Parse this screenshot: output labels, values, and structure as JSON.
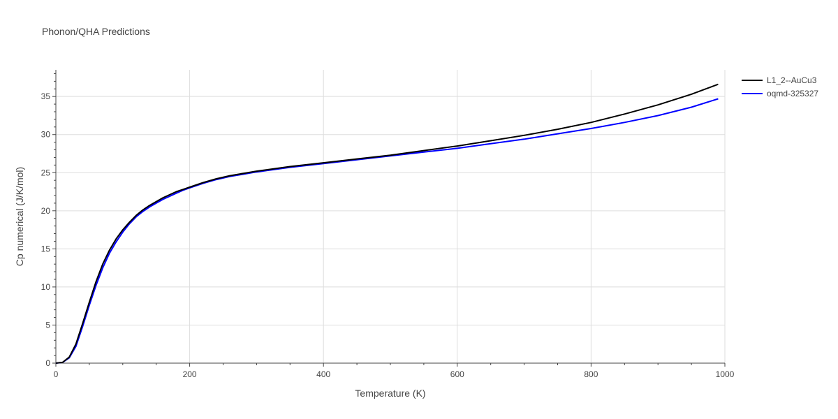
{
  "colors": {
    "grid": "#dddddd",
    "axis": "#444444",
    "text": "#444444",
    "background": "#ffffff"
  },
  "chart_data": {
    "type": "line",
    "title": "Phonon/QHA Predictions",
    "xlabel": "Temperature (K)",
    "ylabel": "Cp numerical (J/K/mol)",
    "xlim": [
      0,
      1000
    ],
    "ylim": [
      0,
      38.5
    ],
    "xticks": [
      0,
      200,
      400,
      600,
      800,
      1000
    ],
    "yticks": [
      0,
      5,
      10,
      15,
      20,
      25,
      30,
      35
    ],
    "grid": true,
    "legend_position": "top-right",
    "series": [
      {
        "name": "L1_2--AuCu3",
        "color": "#000000",
        "x": [
          0,
          10,
          20,
          30,
          40,
          50,
          60,
          70,
          80,
          90,
          100,
          110,
          120,
          130,
          140,
          150,
          160,
          170,
          180,
          190,
          200,
          220,
          240,
          260,
          280,
          300,
          350,
          400,
          450,
          500,
          550,
          600,
          650,
          700,
          750,
          800,
          850,
          900,
          950,
          990
        ],
        "y": [
          0,
          0.1,
          0.8,
          2.5,
          5.2,
          8.0,
          10.7,
          13.0,
          14.8,
          16.3,
          17.5,
          18.5,
          19.4,
          20.1,
          20.7,
          21.2,
          21.7,
          22.1,
          22.5,
          22.8,
          23.1,
          23.7,
          24.2,
          24.6,
          24.9,
          25.2,
          25.8,
          26.3,
          26.8,
          27.3,
          27.9,
          28.5,
          29.2,
          29.9,
          30.7,
          31.6,
          32.7,
          33.9,
          35.3,
          36.6
        ]
      },
      {
        "name": "oqmd-325327",
        "color": "#0000ff",
        "x": [
          0,
          10,
          20,
          30,
          40,
          50,
          60,
          70,
          80,
          90,
          100,
          110,
          120,
          130,
          140,
          150,
          160,
          170,
          180,
          190,
          200,
          220,
          240,
          260,
          280,
          300,
          350,
          400,
          450,
          500,
          550,
          600,
          650,
          700,
          750,
          800,
          850,
          900,
          950,
          990
        ],
        "y": [
          0,
          0.1,
          0.7,
          2.2,
          4.8,
          7.6,
          10.2,
          12.5,
          14.4,
          15.9,
          17.2,
          18.3,
          19.2,
          19.9,
          20.5,
          21.0,
          21.5,
          21.9,
          22.3,
          22.7,
          23.0,
          23.6,
          24.1,
          24.5,
          24.8,
          25.1,
          25.7,
          26.2,
          26.7,
          27.2,
          27.7,
          28.2,
          28.8,
          29.4,
          30.1,
          30.8,
          31.6,
          32.5,
          33.6,
          34.7
        ]
      }
    ]
  }
}
